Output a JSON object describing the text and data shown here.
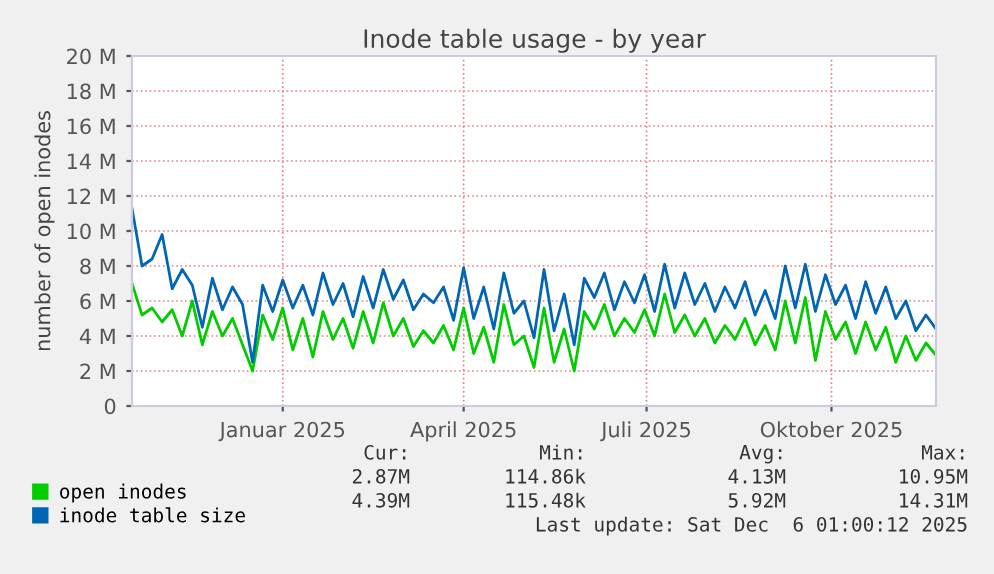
{
  "chart_data": {
    "type": "line",
    "title": "Inode table usage - by year",
    "ylabel": "number of open inodes",
    "x": [
      "2024-11-01",
      "2024-11-06",
      "2024-11-11",
      "2024-11-16",
      "2024-11-21",
      "2024-11-26",
      "2024-12-01",
      "2024-12-06",
      "2024-12-11",
      "2024-12-16",
      "2024-12-21",
      "2024-12-26",
      "2024-12-31",
      "2025-01-05",
      "2025-01-10",
      "2025-01-15",
      "2025-01-20",
      "2025-01-25",
      "2025-01-30",
      "2025-02-04",
      "2025-02-09",
      "2025-02-14",
      "2025-02-19",
      "2025-02-24",
      "2025-03-01",
      "2025-03-06",
      "2025-03-11",
      "2025-03-16",
      "2025-03-21",
      "2025-03-26",
      "2025-03-31",
      "2025-04-05",
      "2025-04-10",
      "2025-04-15",
      "2025-04-20",
      "2025-04-25",
      "2025-04-30",
      "2025-05-05",
      "2025-05-10",
      "2025-05-15",
      "2025-05-20",
      "2025-05-25",
      "2025-05-30",
      "2025-06-04",
      "2025-06-09",
      "2025-06-14",
      "2025-06-19",
      "2025-06-24",
      "2025-06-29",
      "2025-07-04",
      "2025-07-09",
      "2025-07-14",
      "2025-07-19",
      "2025-07-24",
      "2025-07-29",
      "2025-08-03",
      "2025-08-08",
      "2025-08-13",
      "2025-08-18",
      "2025-08-23",
      "2025-08-28",
      "2025-09-02",
      "2025-09-07",
      "2025-09-12",
      "2025-09-17",
      "2025-09-22",
      "2025-09-27",
      "2025-10-02",
      "2025-10-07",
      "2025-10-12",
      "2025-10-17",
      "2025-10-22",
      "2025-10-27",
      "2025-11-01",
      "2025-11-06",
      "2025-11-11",
      "2025-11-16",
      "2025-11-21",
      "2025-11-26",
      "2025-12-01",
      "2025-12-06"
    ],
    "series": [
      {
        "name": "open inodes",
        "color": "#00cc00",
        "values": [
          7.0,
          5.2,
          5.6,
          4.8,
          5.5,
          4.0,
          6.0,
          3.5,
          5.4,
          4.0,
          5.0,
          3.5,
          2.0,
          5.2,
          3.8,
          5.6,
          3.2,
          5.0,
          2.8,
          5.4,
          3.8,
          5.0,
          3.3,
          5.4,
          3.6,
          5.9,
          4.0,
          5.0,
          3.4,
          4.3,
          3.6,
          4.6,
          3.2,
          5.6,
          3.0,
          4.5,
          2.5,
          5.8,
          3.5,
          4.0,
          2.2,
          5.6,
          2.5,
          4.4,
          2.0,
          5.4,
          4.4,
          5.8,
          4.0,
          5.0,
          4.2,
          5.5,
          4.0,
          6.4,
          4.2,
          5.2,
          4.0,
          5.0,
          3.6,
          4.6,
          3.8,
          5.0,
          3.5,
          4.6,
          3.2,
          6.0,
          3.6,
          6.2,
          2.6,
          5.4,
          3.8,
          4.8,
          3.0,
          4.8,
          3.2,
          4.5,
          2.5,
          4.0,
          2.6,
          3.6,
          2.9
        ]
      },
      {
        "name": "inode table size",
        "color": "#0066b3",
        "values": [
          11.3,
          8.0,
          8.4,
          9.8,
          6.7,
          7.8,
          6.9,
          4.5,
          7.3,
          5.5,
          6.8,
          5.8,
          2.5,
          6.9,
          5.4,
          7.2,
          5.6,
          6.9,
          5.2,
          7.6,
          5.8,
          7.0,
          5.1,
          7.4,
          5.6,
          7.8,
          6.1,
          7.2,
          5.5,
          6.4,
          5.9,
          6.8,
          4.9,
          7.9,
          5.0,
          6.8,
          4.4,
          7.6,
          5.3,
          6.0,
          3.9,
          7.8,
          4.3,
          6.4,
          3.5,
          7.3,
          6.2,
          7.6,
          5.5,
          7.1,
          5.9,
          7.5,
          5.4,
          8.1,
          5.6,
          7.6,
          5.8,
          7.0,
          5.4,
          6.8,
          5.6,
          7.1,
          5.2,
          6.6,
          5.0,
          8.0,
          5.6,
          8.1,
          5.4,
          7.5,
          5.8,
          6.9,
          5.0,
          7.1,
          5.3,
          6.8,
          5.0,
          6.0,
          4.3,
          5.2,
          4.4
        ]
      }
    ],
    "xlim": [
      "2024-11-01",
      "2025-12-06"
    ],
    "xticks": [
      {
        "value": "2025-01-15",
        "label": "Januar 2025"
      },
      {
        "value": "2025-04-15",
        "label": "April 2025"
      },
      {
        "value": "2025-07-15",
        "label": "Juli 2025"
      },
      {
        "value": "2025-10-15",
        "label": "Oktober 2025"
      }
    ],
    "ylim": [
      0,
      20
    ],
    "yticks": [
      0,
      {
        "value": 2,
        "label": "2 M"
      },
      {
        "value": 4,
        "label": "4 M"
      },
      {
        "value": 6,
        "label": "6 M"
      },
      {
        "value": 8,
        "label": "8 M"
      },
      {
        "value": 10,
        "label": "10 M"
      },
      {
        "value": 12,
        "label": "12 M"
      },
      {
        "value": 14,
        "label": "14 M"
      },
      {
        "value": 16,
        "label": "16 M"
      },
      {
        "value": 18,
        "label": "18 M"
      },
      {
        "value": 20,
        "label": "20 M"
      }
    ],
    "grid": true,
    "legend": "bottom",
    "annotations": [
      "Cur:",
      "Min:",
      "Avg:",
      "Max:",
      "2.87M",
      "114.86k",
      "4.13M",
      "10.95M",
      "4.39M",
      "115.48k",
      "5.92M",
      "14.31M",
      "Last update: Sat Dec  6 01:00:12 2025"
    ]
  }
}
